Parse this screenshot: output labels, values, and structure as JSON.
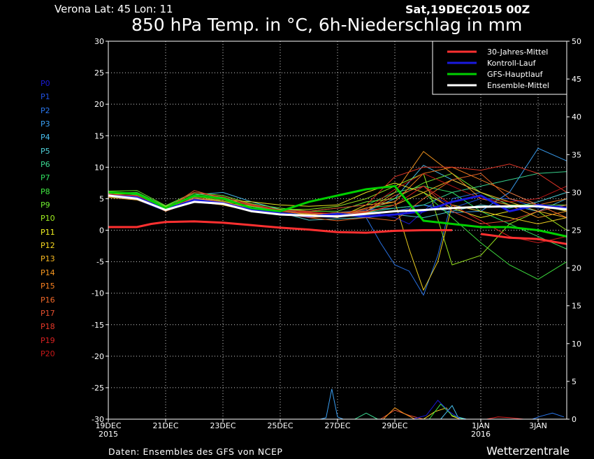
{
  "header": {
    "location": "Verona   Lat: 45 Lon: 11",
    "run": "Sat,19DEC2015 00Z",
    "title": "850 hPa Temp. in °C, 6h-Niederschlag in mm"
  },
  "footer": {
    "source": "Daten: Ensembles des GFS von NCEP",
    "brand": "Wetterzentrale"
  },
  "members": [
    {
      "label": "P0",
      "color": "#1a1ad8"
    },
    {
      "label": "P1",
      "color": "#2050e0"
    },
    {
      "label": "P2",
      "color": "#2a78f0"
    },
    {
      "label": "P3",
      "color": "#3aa0f4"
    },
    {
      "label": "P4",
      "color": "#48c0f0"
    },
    {
      "label": "P5",
      "color": "#50d0d8"
    },
    {
      "label": "P6",
      "color": "#3ad890"
    },
    {
      "label": "P7",
      "color": "#30e060"
    },
    {
      "label": "P8",
      "color": "#40e840"
    },
    {
      "label": "P9",
      "color": "#70f030"
    },
    {
      "label": "P10",
      "color": "#a0f020"
    },
    {
      "label": "P11",
      "color": "#f0f020"
    },
    {
      "label": "P12",
      "color": "#f8d820"
    },
    {
      "label": "P13",
      "color": "#f8b820"
    },
    {
      "label": "P14",
      "color": "#f89820"
    },
    {
      "label": "P15",
      "color": "#f88020"
    },
    {
      "label": "P16",
      "color": "#f06828"
    },
    {
      "label": "P17",
      "color": "#e85030"
    },
    {
      "label": "P18",
      "color": "#e83828"
    },
    {
      "label": "P19",
      "color": "#d82020"
    },
    {
      "label": "P20",
      "color": "#c81818"
    }
  ],
  "chart_data": {
    "type": "line",
    "x_unit": "days from 19DEC2015 00Z",
    "xlim": [
      0,
      16
    ],
    "x_ticks": [
      {
        "x": 0,
        "label": "19DEC",
        "sub": "2015"
      },
      {
        "x": 2,
        "label": "21DEC",
        "sub": ""
      },
      {
        "x": 4,
        "label": "23DEC",
        "sub": ""
      },
      {
        "x": 6,
        "label": "25DEC",
        "sub": ""
      },
      {
        "x": 8,
        "label": "27DEC",
        "sub": ""
      },
      {
        "x": 10,
        "label": "29DEC",
        "sub": ""
      },
      {
        "x": 13,
        "label": "1JAN",
        "sub": "2016"
      },
      {
        "x": 15,
        "label": "3JAN",
        "sub": ""
      }
    ],
    "y_left": {
      "lim": [
        -30,
        30
      ],
      "ticks": [
        30,
        25,
        20,
        15,
        10,
        5,
        0,
        -5,
        -10,
        -15,
        -20,
        -25,
        -30
      ]
    },
    "y_right": {
      "lim": [
        0,
        50
      ],
      "ticks": [
        50,
        45,
        40,
        35,
        30,
        25,
        20,
        15,
        10,
        5,
        0
      ]
    },
    "grid": true,
    "legend": {
      "position": "top-right",
      "entries": [
        {
          "label": "30-Jahres-Mittel",
          "color": "#ff3030"
        },
        {
          "label": "Kontroll-Lauf",
          "color": "#1a1ae0"
        },
        {
          "label": "GFS-Hauptlauf",
          "color": "#00d000"
        },
        {
          "label": "Ensemble-Mittel",
          "color": "#ffffff"
        }
      ]
    },
    "climate_mean": {
      "segments": [
        {
          "x": [
            0,
            1,
            1.5,
            2,
            3,
            4,
            5,
            6,
            7,
            8,
            9,
            10,
            11,
            12
          ],
          "y": [
            0.5,
            0.5,
            1,
            1.3,
            1.4,
            1.2,
            0.8,
            0.4,
            0.1,
            -0.3,
            -0.4,
            -0.1,
            0,
            0
          ]
        },
        {
          "x": [
            13,
            14,
            15,
            16
          ],
          "y": [
            -0.6,
            -1.2,
            -1.4,
            -2.2
          ]
        }
      ]
    },
    "control_run": {
      "x": [
        0,
        1,
        2,
        3,
        4,
        5,
        6,
        7,
        8,
        9,
        10,
        11,
        12,
        13,
        14,
        15,
        16
      ],
      "y": [
        5.5,
        5.2,
        3.3,
        4.8,
        4.3,
        3.2,
        2.7,
        2.2,
        2.6,
        2.2,
        2.5,
        3,
        4.5,
        5.5,
        3,
        4,
        3.5
      ]
    },
    "gfs_main": {
      "x": [
        0,
        1,
        2,
        3,
        4,
        5,
        6,
        7,
        8,
        9,
        10,
        11,
        12,
        13,
        14,
        15,
        16
      ],
      "y": [
        6,
        5.8,
        3.5,
        5.5,
        5,
        3.5,
        3,
        4.5,
        5.5,
        6.5,
        7,
        1.5,
        1,
        0.5,
        0.5,
        0,
        -1
      ]
    },
    "ensemble_mean": {
      "x": [
        0,
        1,
        2,
        3,
        4,
        5,
        6,
        7,
        8,
        9,
        10,
        11,
        12,
        13,
        14,
        15,
        16
      ],
      "y": [
        5.5,
        5,
        3.2,
        4.5,
        4.2,
        3,
        2.5,
        2.3,
        2.2,
        2.6,
        3,
        3.2,
        3.5,
        3.7,
        3.8,
        3.8,
        3.3
      ]
    },
    "members": [
      {
        "x": [
          0,
          1,
          2,
          3,
          4,
          5,
          6,
          7,
          8,
          9,
          10,
          10.5,
          11,
          11.5,
          12,
          13,
          14,
          15,
          16
        ],
        "y": [
          5.3,
          4.8,
          3,
          4.5,
          4,
          3,
          2.5,
          2.2,
          2,
          3,
          2,
          1,
          3,
          5,
          4,
          3,
          6,
          4,
          3
        ]
      },
      {
        "x": [
          0,
          1,
          2,
          3,
          4,
          5,
          6,
          7,
          8,
          9,
          10,
          11,
          12,
          13,
          14,
          15,
          16
        ],
        "y": [
          5.5,
          5.1,
          3.2,
          4.7,
          4.4,
          3.2,
          2.8,
          2.4,
          2.3,
          2.8,
          3,
          4,
          3.5,
          5,
          5,
          3.5,
          4
        ]
      },
      {
        "x": [
          0,
          1,
          2,
          3,
          4,
          5,
          6,
          7,
          8,
          9,
          9.5,
          10,
          10.5,
          11,
          11.5,
          12,
          13,
          14,
          15,
          16
        ],
        "y": [
          5.6,
          5,
          3.4,
          5,
          4.2,
          3.5,
          2.6,
          2.3,
          2.5,
          2,
          -2,
          -5.5,
          -6.5,
          -10.3,
          -4,
          5,
          6,
          4,
          3,
          4
        ]
      },
      {
        "x": [
          0,
          1,
          2,
          3,
          4,
          5,
          6,
          7,
          8,
          9,
          10,
          11,
          12,
          13,
          14,
          15,
          16
        ],
        "y": [
          5.8,
          5.4,
          3,
          5.2,
          4.3,
          3.8,
          3,
          2.5,
          2.8,
          3.2,
          3.5,
          4,
          2.8,
          3,
          6,
          13,
          11
        ]
      },
      {
        "x": [
          0,
          1,
          2,
          3,
          4,
          5,
          6,
          7,
          8,
          9,
          10,
          11,
          12,
          13,
          14,
          15,
          16
        ],
        "y": [
          5.4,
          5.2,
          3.6,
          5.6,
          6,
          4.5,
          3.3,
          2.6,
          2.4,
          3,
          5,
          10.3,
          8,
          6,
          4,
          3,
          5
        ]
      },
      {
        "x": [
          0,
          1,
          2,
          3,
          4,
          5,
          6,
          7,
          8,
          9,
          10,
          11,
          12,
          13,
          14,
          15,
          16
        ],
        "y": [
          5.7,
          4.9,
          3.1,
          4.9,
          4.5,
          3.2,
          2.8,
          1.6,
          1.8,
          2,
          2.5,
          2,
          3,
          4,
          3.5,
          4.5,
          6
        ]
      },
      {
        "x": [
          0,
          1,
          2,
          3,
          4,
          5,
          6,
          7,
          8,
          9,
          10,
          11,
          12,
          13,
          14,
          15,
          16
        ],
        "y": [
          6,
          5.6,
          3.3,
          5,
          4.8,
          3.6,
          3,
          2.8,
          2.2,
          2.8,
          3.5,
          4,
          6,
          7,
          8,
          9,
          9.3
        ]
      },
      {
        "x": [
          0,
          1,
          2,
          3,
          4,
          5,
          6,
          7,
          8,
          9,
          10,
          11,
          12,
          13,
          14,
          15,
          16
        ],
        "y": [
          5.2,
          5.3,
          3.5,
          5.3,
          5,
          4,
          3.3,
          3,
          3.5,
          4,
          6,
          7,
          6,
          3,
          1,
          -1,
          -3
        ]
      },
      {
        "x": [
          0,
          1,
          2,
          3,
          4,
          5,
          6,
          7,
          8,
          9,
          10,
          11,
          12,
          13,
          14,
          15,
          16
        ],
        "y": [
          5.9,
          6,
          3.8,
          5.8,
          5.2,
          3.8,
          3.2,
          2.6,
          2.4,
          3.5,
          4,
          6,
          2,
          -2,
          -5.5,
          -7.8,
          -5
        ]
      },
      {
        "x": [
          0,
          1,
          2,
          3,
          4,
          5,
          6,
          7,
          8,
          9,
          10,
          11,
          12,
          13,
          14,
          15,
          16
        ],
        "y": [
          6.2,
          6.3,
          3.9,
          6,
          5.5,
          4.2,
          3.5,
          3,
          3,
          4.5,
          5,
          7.5,
          9,
          6,
          4,
          4,
          4
        ]
      },
      {
        "x": [
          0,
          1,
          2,
          3,
          4,
          5,
          6,
          7,
          8,
          9,
          10,
          11,
          12,
          13,
          14,
          15,
          16
        ],
        "y": [
          5.5,
          5.5,
          3.6,
          5.4,
          4.6,
          3.8,
          3.3,
          3.3,
          3.8,
          5,
          7,
          9,
          -5.5,
          -4,
          1,
          3,
          0
        ]
      },
      {
        "x": [
          0,
          1,
          2,
          3,
          4,
          5,
          6,
          7,
          8,
          9,
          10,
          11,
          12,
          13,
          14,
          15,
          16
        ],
        "y": [
          5.7,
          5.8,
          3.7,
          5.5,
          4.8,
          4.5,
          4,
          3.8,
          4,
          6,
          7.5,
          6,
          3.5,
          2,
          3,
          4,
          3
        ]
      },
      {
        "x": [
          0,
          1,
          2,
          3,
          4,
          5,
          6,
          7,
          8,
          9,
          10,
          10.5,
          11,
          11.5,
          12,
          13,
          14,
          15,
          16
        ],
        "y": [
          5.4,
          5,
          3.4,
          5,
          4,
          3,
          2.4,
          2.6,
          2,
          4,
          4.5,
          -3,
          -9.5,
          -5,
          4,
          3,
          2,
          1,
          2
        ]
      },
      {
        "x": [
          0,
          1,
          2,
          3,
          4,
          5,
          6,
          7,
          8,
          9,
          10,
          11,
          12,
          13,
          14,
          15,
          16
        ],
        "y": [
          5.2,
          4.8,
          3.2,
          4.5,
          4,
          3,
          2.5,
          2.3,
          2.4,
          2.8,
          4,
          6,
          8,
          6,
          4.5,
          3,
          2
        ]
      },
      {
        "x": [
          0,
          1,
          2,
          3,
          4,
          5,
          6,
          7,
          8,
          9,
          10,
          11,
          12,
          13,
          14,
          15,
          16
        ],
        "y": [
          5.5,
          5,
          3.5,
          5,
          4.5,
          3.5,
          3,
          2.5,
          2.8,
          3,
          6,
          12.5,
          9,
          5,
          4,
          2,
          3
        ]
      },
      {
        "x": [
          0,
          1,
          2,
          3,
          4,
          5,
          6,
          7,
          8,
          9,
          10,
          11,
          12,
          13,
          14,
          15,
          16
        ],
        "y": [
          5.8,
          5.2,
          3,
          4.6,
          4.3,
          3.6,
          2.8,
          2,
          2.3,
          3.5,
          4.5,
          9,
          10,
          8,
          6,
          4,
          5
        ]
      },
      {
        "x": [
          0,
          1,
          2,
          3,
          4,
          5,
          6,
          7,
          8,
          9,
          10,
          11,
          12,
          13,
          14,
          15,
          16
        ],
        "y": [
          5.6,
          5.4,
          3.2,
          5.2,
          4.5,
          3.3,
          2.6,
          2,
          1.5,
          2,
          1.5,
          5,
          8,
          9,
          5,
          4,
          2
        ]
      },
      {
        "x": [
          0,
          1,
          2,
          3,
          4,
          5,
          6,
          7,
          8,
          9,
          10,
          11,
          12,
          13,
          14,
          15,
          16
        ],
        "y": [
          5.4,
          5,
          3.3,
          6.3,
          5,
          4,
          3,
          2.8,
          2.5,
          3,
          5.5,
          7,
          3,
          1,
          1.5,
          3,
          4
        ]
      },
      {
        "x": [
          0,
          1,
          2,
          3,
          4,
          5,
          6,
          7,
          8,
          9,
          10,
          11,
          12,
          13,
          14,
          15,
          16
        ],
        "y": [
          5.3,
          5.2,
          3.4,
          6,
          5.3,
          4.1,
          3.2,
          3,
          3.5,
          4,
          8.5,
          10,
          10,
          9.5,
          10.5,
          9,
          6
        ]
      },
      {
        "x": [
          0,
          1,
          2,
          3,
          4,
          5,
          6,
          7,
          8,
          9,
          10,
          11,
          12,
          13,
          14,
          15,
          16
        ],
        "y": [
          5.6,
          5.3,
          3.5,
          5.4,
          4.8,
          3.6,
          3,
          2.7,
          2.3,
          2.9,
          4,
          7,
          4,
          1.5,
          -1,
          -2,
          -1
        ]
      },
      {
        "x": [
          0,
          1,
          2,
          3,
          4,
          5,
          6,
          7,
          8,
          9,
          10,
          11,
          12,
          13,
          14,
          15,
          16
        ],
        "y": [
          5.7,
          5.5,
          3.6,
          5.6,
          4.9,
          3.9,
          3.2,
          2.9,
          2.6,
          3.3,
          6.5,
          9,
          7,
          5,
          4.5,
          5,
          7
        ]
      }
    ],
    "precip_member_indices": [
      3,
      17,
      12,
      8,
      4,
      0,
      14,
      6,
      2,
      19
    ],
    "precip": [
      {
        "x": [
          7.4,
          7.6,
          7.8,
          8,
          8.2,
          8.5
        ],
        "y": [
          0,
          0.2,
          4,
          0.3,
          0,
          0
        ]
      },
      {
        "x": [
          9.5,
          10,
          10.5,
          11,
          11.5
        ],
        "y": [
          0,
          1.2,
          0.5,
          0,
          0
        ]
      },
      {
        "x": [
          11,
          11.4,
          11.8,
          12,
          12.3
        ],
        "y": [
          0,
          1,
          1.5,
          0.4,
          0
        ]
      },
      {
        "x": [
          11.2,
          11.6,
          12,
          12.4
        ],
        "y": [
          0,
          2,
          0.5,
          0
        ]
      },
      {
        "x": [
          11.6,
          12,
          12.2,
          12.5
        ],
        "y": [
          0,
          1.8,
          0.3,
          0
        ]
      },
      {
        "x": [
          10.6,
          11.1,
          11.5,
          11.9,
          12.3
        ],
        "y": [
          0,
          0.5,
          2.5,
          1,
          0
        ]
      },
      {
        "x": [
          9.6,
          10,
          10.3,
          10.7
        ],
        "y": [
          0,
          1.5,
          0.8,
          0
        ]
      },
      {
        "x": [
          8.6,
          9,
          9.4
        ],
        "y": [
          0,
          0.8,
          0
        ]
      },
      {
        "x": [
          14.8,
          15.1,
          15.5,
          15.9
        ],
        "y": [
          0,
          0.4,
          0.8,
          0.3
        ]
      },
      {
        "x": [
          13.2,
          13.6,
          14,
          14.5
        ],
        "y": [
          0,
          0.3,
          0.2,
          0
        ]
      }
    ]
  }
}
